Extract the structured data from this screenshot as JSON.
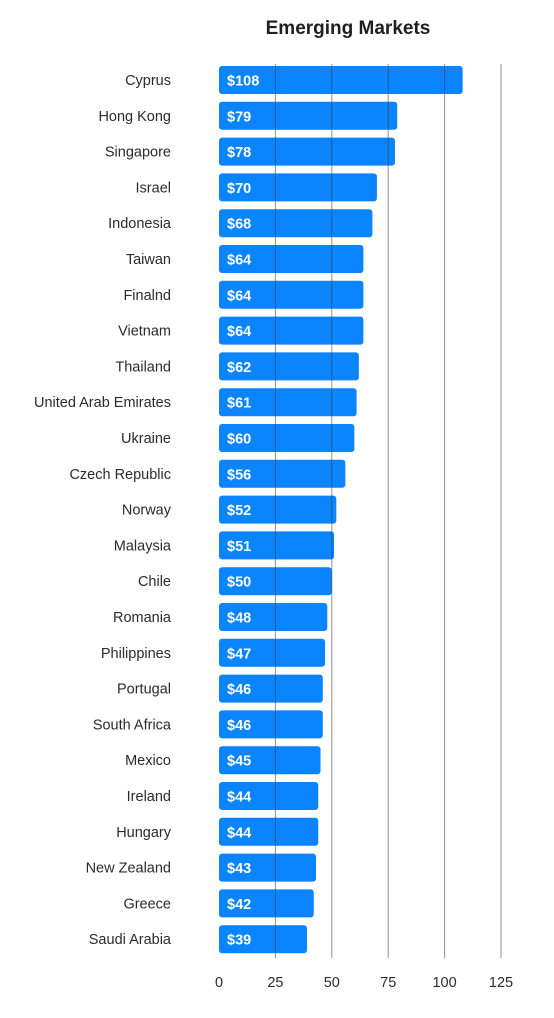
{
  "chart_data": {
    "type": "bar",
    "orientation": "horizontal",
    "title": "Emerging Markets",
    "xlabel": "",
    "ylabel": "",
    "xlim": [
      0,
      125
    ],
    "ticks": [
      0,
      25,
      50,
      75,
      100,
      125
    ],
    "tick_labels": [
      "0",
      "25",
      "50",
      "75",
      "100",
      "125"
    ],
    "grid": "vertical",
    "bar_color": "#0A84FF",
    "categories": [
      "Cyprus",
      "Hong Kong",
      "Singapore",
      "Israel",
      "Indonesia",
      "Taiwan",
      "Finalnd",
      "Vietnam",
      "Thailand",
      "United Arab Emirates",
      "Ukraine",
      "Czech Republic",
      "Norway",
      "Malaysia",
      "Chile",
      "Romania",
      "Philippines",
      "Portugal",
      "South Africa",
      "Mexico",
      "Ireland",
      "Hungary",
      "New Zealand",
      "Greece",
      "Saudi Arabia"
    ],
    "values": [
      108,
      79,
      78,
      70,
      68,
      64,
      64,
      64,
      62,
      61,
      60,
      56,
      52,
      51,
      50,
      48,
      47,
      46,
      46,
      45,
      44,
      44,
      43,
      42,
      39
    ],
    "value_labels": [
      "$108",
      "$79",
      "$78",
      "$70",
      "$68",
      "$64",
      "$64",
      "$64",
      "$62",
      "$61",
      "$60",
      "$56",
      "$52",
      "$51",
      "$50",
      "$48",
      "$47",
      "$46",
      "$46",
      "$45",
      "$44",
      "$44",
      "$43",
      "$42",
      "$39"
    ]
  }
}
